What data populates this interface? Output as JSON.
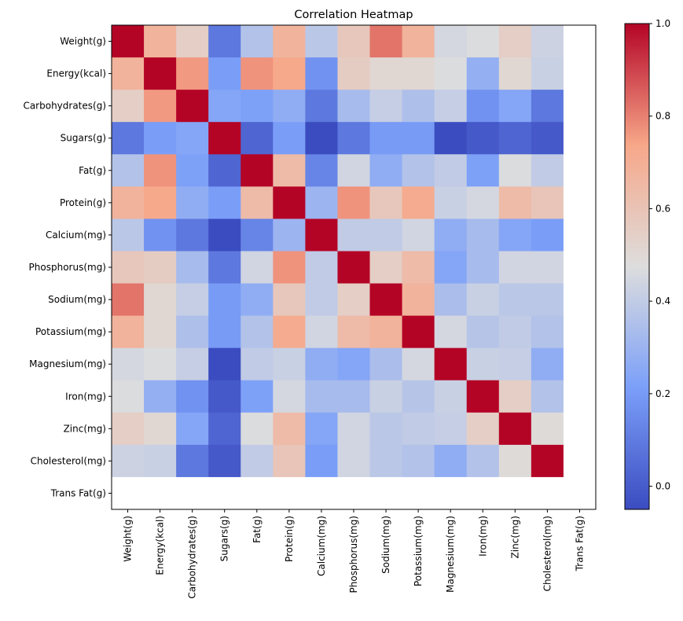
{
  "chart_data": {
    "type": "heatmap",
    "title": "Correlation Heatmap",
    "xlabel": "",
    "ylabel": "",
    "colormap": "coolwarm",
    "colormap_stops": [
      "#3b4cc0",
      "#7b9ff9",
      "#dddddd",
      "#f7a789",
      "#b40426"
    ],
    "nan_color": "#ffffff",
    "vmin": -0.05,
    "vmax": 1.0,
    "labels": [
      "Weight(g)",
      "Energy(kcal)",
      "Carbohydrates(g)",
      "Sugars(g)",
      "Fat(g)",
      "Protein(g)",
      "Calcium(mg)",
      "Phosphorus(mg)",
      "Sodium(mg)",
      "Potassium(mg)",
      "Magnesium(mg)",
      "Iron(mg)",
      "Zinc(mg)",
      "Cholesterol(mg)",
      "Trans Fat(g)"
    ],
    "matrix": [
      [
        1.0,
        0.68,
        0.55,
        0.09,
        0.36,
        0.68,
        0.38,
        0.58,
        0.82,
        0.68,
        0.45,
        0.47,
        0.55,
        0.43,
        null
      ],
      [
        0.68,
        1.0,
        0.76,
        0.21,
        0.77,
        0.73,
        0.17,
        0.56,
        0.51,
        0.51,
        0.47,
        0.28,
        0.51,
        0.42,
        null
      ],
      [
        0.55,
        0.76,
        1.0,
        0.24,
        0.22,
        0.27,
        0.09,
        0.33,
        0.41,
        0.35,
        0.41,
        0.17,
        0.24,
        0.09,
        null
      ],
      [
        0.09,
        0.21,
        0.24,
        1.0,
        0.03,
        0.21,
        -0.05,
        0.09,
        0.2,
        0.2,
        -0.05,
        -0.01,
        0.03,
        -0.01,
        null
      ],
      [
        0.36,
        0.77,
        0.22,
        0.03,
        1.0,
        0.64,
        0.13,
        0.44,
        0.27,
        0.36,
        0.4,
        0.22,
        0.47,
        0.4,
        null
      ],
      [
        0.68,
        0.73,
        0.27,
        0.21,
        0.64,
        1.0,
        0.3,
        0.77,
        0.58,
        0.72,
        0.42,
        0.45,
        0.64,
        0.59,
        null
      ],
      [
        0.38,
        0.17,
        0.09,
        -0.05,
        0.13,
        0.3,
        1.0,
        0.4,
        0.4,
        0.44,
        0.27,
        0.33,
        0.24,
        0.21,
        null
      ],
      [
        0.58,
        0.56,
        0.33,
        0.09,
        0.44,
        0.77,
        0.4,
        1.0,
        0.55,
        0.64,
        0.24,
        0.33,
        0.44,
        0.44,
        null
      ],
      [
        0.82,
        0.51,
        0.41,
        0.2,
        0.27,
        0.58,
        0.4,
        0.55,
        1.0,
        0.68,
        0.34,
        0.42,
        0.38,
        0.38,
        null
      ],
      [
        0.68,
        0.51,
        0.35,
        0.2,
        0.36,
        0.72,
        0.44,
        0.64,
        0.68,
        1.0,
        0.45,
        0.37,
        0.4,
        0.36,
        null
      ],
      [
        0.45,
        0.47,
        0.41,
        -0.05,
        0.4,
        0.42,
        0.27,
        0.24,
        0.34,
        0.45,
        1.0,
        0.42,
        0.41,
        0.27,
        null
      ],
      [
        0.47,
        0.28,
        0.17,
        -0.01,
        0.22,
        0.45,
        0.33,
        0.33,
        0.42,
        0.37,
        0.42,
        1.0,
        0.55,
        0.36,
        null
      ],
      [
        0.55,
        0.51,
        0.24,
        0.03,
        0.47,
        0.64,
        0.24,
        0.44,
        0.38,
        0.4,
        0.41,
        0.55,
        1.0,
        0.49,
        null
      ],
      [
        0.43,
        0.42,
        0.09,
        -0.01,
        0.4,
        0.59,
        0.21,
        0.44,
        0.38,
        0.36,
        0.27,
        0.36,
        0.49,
        1.0,
        null
      ],
      [
        null,
        null,
        null,
        null,
        null,
        null,
        null,
        null,
        null,
        null,
        null,
        null,
        null,
        null,
        null
      ]
    ],
    "colorbar": {
      "ticks": [
        0.0,
        0.2,
        0.4,
        0.6,
        0.8,
        1.0
      ],
      "tick_labels": [
        "0.0",
        "0.2",
        "0.4",
        "0.6",
        "0.8",
        "1.0"
      ],
      "placement": "right"
    },
    "grid": false
  }
}
